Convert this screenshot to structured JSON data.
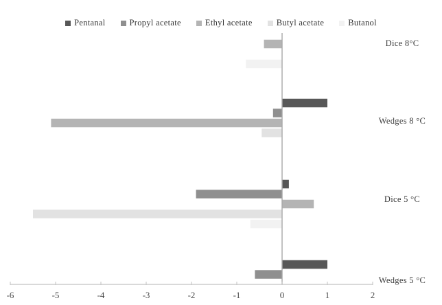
{
  "chart_data": {
    "type": "bar",
    "orientation": "horizontal",
    "title": "",
    "xlabel": "",
    "ylabel": "",
    "xlim": [
      -6,
      2
    ],
    "xticks": [
      -6,
      -5,
      -4,
      -3,
      -2,
      -1,
      0,
      1,
      2
    ],
    "grid": false,
    "legend_position": "top",
    "categories": [
      "Dice 8°C",
      "Wedges 8 °C",
      "Dice 5 °C",
      "Wedges 5 °C"
    ],
    "series": [
      {
        "name": "Pentanal",
        "color": "#575757",
        "values": [
          0,
          1.0,
          0.15,
          1.0
        ]
      },
      {
        "name": "Propyl acetate",
        "color": "#8f8f8f",
        "values": [
          0,
          -0.2,
          -1.9,
          -0.6
        ]
      },
      {
        "name": "Ethyl acetate",
        "color": "#b4b4b4",
        "values": [
          -0.4,
          -5.1,
          0.7,
          0
        ]
      },
      {
        "name": "Butyl acetate",
        "color": "#e2e2e2",
        "values": [
          0,
          -0.45,
          -5.5,
          0
        ]
      },
      {
        "name": "Butanol",
        "color": "#f2f2f2",
        "values": [
          -0.8,
          0,
          -0.7,
          0
        ]
      }
    ],
    "axis_color": "#c2c2c2",
    "zero_line_color": "#a8a8a8"
  }
}
